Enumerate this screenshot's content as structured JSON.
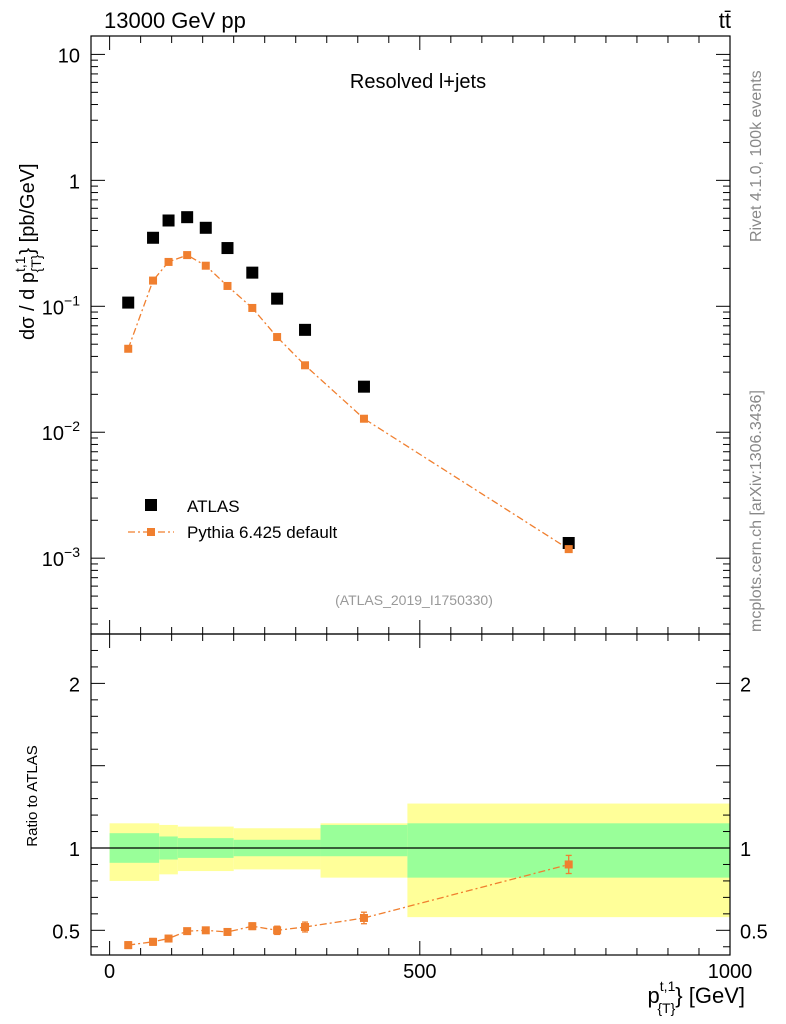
{
  "header": {
    "energy_label": "13000 GeV pp",
    "process_label": "tt̄"
  },
  "side_labels": {
    "rivet": "Rivet 4.1.0,  100k events",
    "mcplots": "mcplots.cern.ch [arXiv:1306.3436]"
  },
  "colors": {
    "data": "#000000",
    "mc": "#f07f2f",
    "band_inner": "#99ff99",
    "band_outer": "#ffff99",
    "watermark": "#999999"
  },
  "chart_data": [
    {
      "type": "scatter",
      "panel": "main",
      "title": "Resolved l+jets",
      "analysis_tag": "(ATLAS_2019_I1750330)",
      "ylabel_main": "dσ / d p",
      "ylabel_sup": "t,1",
      "ylabel_sub": "{T}",
      "ylabel_unit": "} [pb/GeV]",
      "yscale": "log",
      "ylim": [
        0.00025,
        14
      ],
      "xlim": [
        -30,
        1000
      ],
      "ytick_labels": [
        {
          "value": 10,
          "base": "10",
          "exp": ""
        },
        {
          "value": 1,
          "base": "1",
          "exp": ""
        },
        {
          "value": 0.1,
          "base": "10",
          "exp": "−1"
        },
        {
          "value": 0.01,
          "base": "10",
          "exp": "−2"
        },
        {
          "value": 0.001,
          "base": "10",
          "exp": "−3"
        }
      ],
      "legend": {
        "position": "bottom-left",
        "entries": [
          {
            "label": "ATLAS",
            "marker": "square",
            "color": "#000000"
          },
          {
            "label": "Pythia 6.425 default",
            "marker": "square-dashdot",
            "color": "#f07f2f"
          }
        ]
      },
      "series": [
        {
          "name": "ATLAS",
          "x": [
            30,
            70,
            95,
            125,
            155,
            190,
            230,
            270,
            315,
            410,
            740
          ],
          "y": [
            0.107,
            0.35,
            0.48,
            0.51,
            0.42,
            0.29,
            0.185,
            0.115,
            0.065,
            0.023,
            0.00132
          ]
        },
        {
          "name": "Pythia 6.425 default",
          "x": [
            30,
            70,
            95,
            125,
            155,
            190,
            230,
            270,
            315,
            410,
            740
          ],
          "y": [
            0.046,
            0.16,
            0.225,
            0.255,
            0.21,
            0.145,
            0.097,
            0.057,
            0.034,
            0.0128,
            0.00118
          ]
        }
      ]
    },
    {
      "type": "scatter",
      "panel": "ratio",
      "ylabel": "Ratio to ATLAS",
      "xlabel_main": "p",
      "xlabel_sup": "t,1",
      "xlabel_sub": "{T}",
      "xlabel_unit": "} [GeV]",
      "xlim": [
        -30,
        1000
      ],
      "ylim": [
        0.35,
        2.3
      ],
      "xtick_labels": [
        {
          "value": 0,
          "label": "0"
        },
        {
          "value": 500,
          "label": "500"
        },
        {
          "value": 1000,
          "label": "1000"
        }
      ],
      "ytick_labels": [
        {
          "value": 0.5,
          "label": "0.5"
        },
        {
          "value": 1,
          "label": "1"
        },
        {
          "value": 2,
          "label": "2"
        }
      ],
      "bands": [
        {
          "x0": 0,
          "x1": 80,
          "inner": [
            0.91,
            1.09
          ],
          "outer": [
            0.8,
            1.15
          ]
        },
        {
          "x0": 80,
          "x1": 110,
          "inner": [
            0.93,
            1.07
          ],
          "outer": [
            0.84,
            1.14
          ]
        },
        {
          "x0": 110,
          "x1": 200,
          "inner": [
            0.94,
            1.06
          ],
          "outer": [
            0.86,
            1.13
          ]
        },
        {
          "x0": 200,
          "x1": 340,
          "inner": [
            0.95,
            1.05
          ],
          "outer": [
            0.87,
            1.12
          ]
        },
        {
          "x0": 340,
          "x1": 480,
          "inner": [
            0.95,
            1.14
          ],
          "outer": [
            0.82,
            1.15
          ]
        },
        {
          "x0": 480,
          "x1": 1000,
          "inner": [
            0.82,
            1.15
          ],
          "outer": [
            0.58,
            1.27
          ]
        }
      ],
      "series": [
        {
          "name": "Pythia 6.425 default / ATLAS",
          "x": [
            30,
            70,
            95,
            125,
            155,
            190,
            230,
            270,
            315,
            410,
            740
          ],
          "y": [
            0.41,
            0.43,
            0.45,
            0.495,
            0.5,
            0.49,
            0.525,
            0.5,
            0.52,
            0.575,
            0.9
          ],
          "err": [
            0.02,
            0.02,
            0.015,
            0.015,
            0.015,
            0.015,
            0.02,
            0.025,
            0.03,
            0.035,
            0.055
          ]
        }
      ]
    }
  ]
}
